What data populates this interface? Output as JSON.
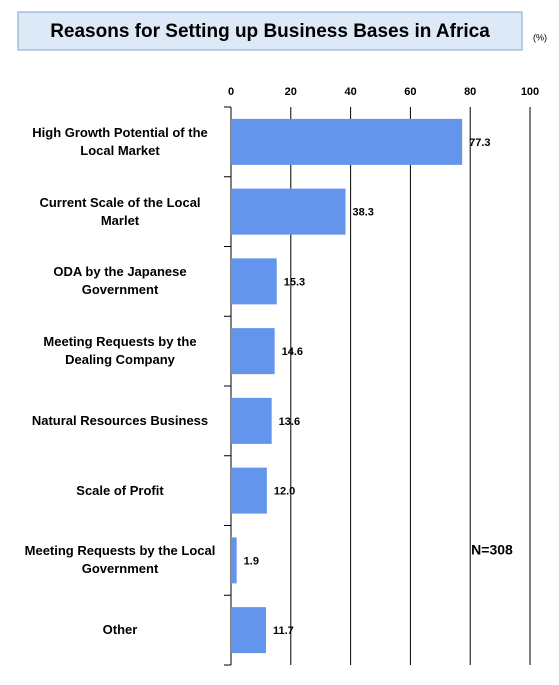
{
  "chart_data": {
    "type": "barh",
    "title": "Reasons for Setting up Business Bases in Africa",
    "unit_label": "(%)",
    "annotation": "N=308",
    "categories": [
      "High Growth Potential of the Local Market",
      "Current Scale of the Local Marlet",
      "ODA by the Japanese Government",
      "Meeting Requests by the Dealing Company",
      "Natural Resources Business",
      "Scale of Profit",
      "Meeting Requests by the Local Government",
      "Other"
    ],
    "values": [
      77.3,
      38.3,
      15.3,
      14.6,
      13.6,
      12.0,
      1.9,
      11.7
    ],
    "value_labels": [
      "77.3",
      "38.3",
      "15.3",
      "14.6",
      "13.6",
      "12.0",
      "1.9",
      "11.7"
    ],
    "color": "#6495ed",
    "xlim": [
      0,
      100
    ],
    "xticks": [
      0,
      20,
      40,
      60,
      80,
      100
    ],
    "grid": true
  }
}
